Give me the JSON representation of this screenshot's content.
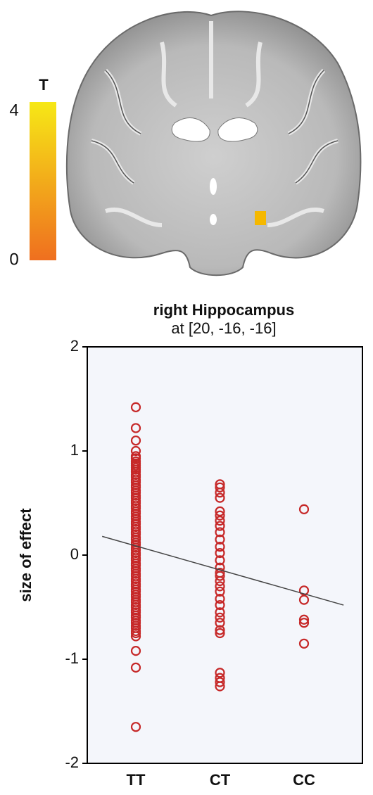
{
  "colorbar": {
    "label": "T",
    "min": 0,
    "max": 4,
    "colors": [
      "#f6e816",
      "#ef6f1f"
    ]
  },
  "chart_data": {
    "type": "scatter",
    "title": "right Hippocampus",
    "subtitle": "at [20, -16, -16]",
    "y_label": "size of effect",
    "color": "#c62828",
    "groups": [
      {
        "category": "TT",
        "values": [
          1.42,
          1.22,
          1.1,
          1.0,
          0.95,
          0.93,
          0.9,
          0.88,
          0.86,
          0.84,
          0.82,
          0.8,
          0.77,
          0.75,
          0.72,
          0.7,
          0.67,
          0.65,
          0.62,
          0.6,
          0.57,
          0.55,
          0.52,
          0.5,
          0.47,
          0.45,
          0.42,
          0.4,
          0.37,
          0.35,
          0.32,
          0.3,
          0.27,
          0.25,
          0.22,
          0.2,
          0.17,
          0.15,
          0.12,
          0.1,
          0.07,
          0.05,
          0.02,
          0,
          -0.03,
          -0.05,
          -0.08,
          -0.1,
          -0.13,
          -0.15,
          -0.18,
          -0.2,
          -0.23,
          -0.25,
          -0.28,
          -0.3,
          -0.33,
          -0.35,
          -0.38,
          -0.4,
          -0.43,
          -0.45,
          -0.48,
          -0.5,
          -0.53,
          -0.55,
          -0.58,
          -0.6,
          -0.63,
          -0.65,
          -0.68,
          -0.7,
          -0.73,
          -0.75,
          -0.78,
          -0.92,
          -1.08,
          -1.65
        ]
      },
      {
        "category": "CT",
        "values": [
          0.68,
          0.65,
          0.6,
          0.55,
          0.42,
          0.38,
          0.33,
          0.28,
          0.22,
          0.15,
          0.08,
          0.02,
          -0.05,
          -0.12,
          -0.17,
          -0.2,
          -0.25,
          -0.3,
          -0.35,
          -0.42,
          -0.48,
          -0.55,
          -0.6,
          -0.65,
          -0.72,
          -0.75,
          -1.13,
          -1.18,
          -1.22,
          -1.26
        ]
      },
      {
        "category": "CC",
        "values": [
          0.44,
          -0.34,
          -0.43,
          -0.62,
          -0.65,
          -0.85
        ]
      }
    ],
    "trend": {
      "x": [
        -0.4,
        2.47
      ],
      "y": [
        0.18,
        -0.48
      ],
      "color": "#444444"
    },
    "ylim": [
      -2,
      2
    ],
    "yticks": [
      -2,
      -1,
      0,
      1,
      2
    ]
  }
}
